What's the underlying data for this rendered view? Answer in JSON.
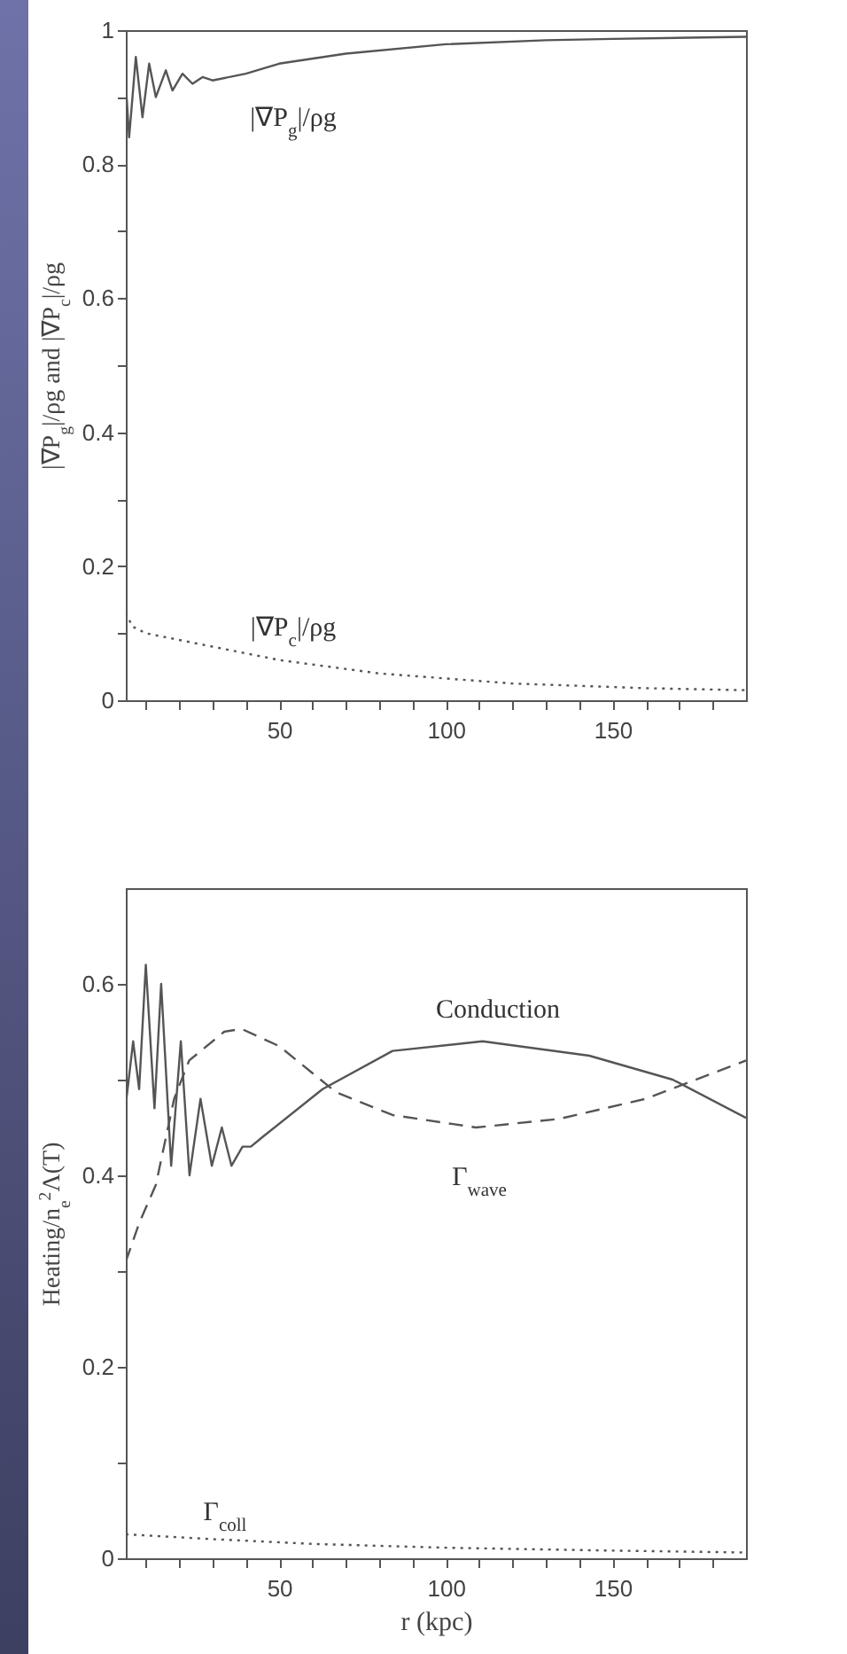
{
  "chart_data": [
    {
      "type": "line",
      "ylabel": "|∇P$_{g}$|/ρg and |∇P$_{c}$|/ρg",
      "xlim": [
        4,
        190
      ],
      "ylim": [
        0,
        1
      ],
      "xticks": [
        {
          "value": 10,
          "label": null
        },
        {
          "value": 20,
          "label": null
        },
        {
          "value": 30,
          "label": null
        },
        {
          "value": 40,
          "label": null
        },
        50,
        {
          "value": 60,
          "label": null
        },
        {
          "value": 70,
          "label": null
        },
        {
          "value": 80,
          "label": null
        },
        {
          "value": 90,
          "label": null
        },
        100,
        {
          "value": 110,
          "label": null
        },
        {
          "value": 120,
          "label": null
        },
        {
          "value": 130,
          "label": null
        },
        {
          "value": 140,
          "label": null
        },
        150,
        {
          "value": 160,
          "label": null
        },
        {
          "value": 170,
          "label": null
        },
        {
          "value": 180,
          "label": null
        }
      ],
      "yticks": [
        0,
        {
          "value": 0.1,
          "label": null
        },
        0.2,
        {
          "value": 0.3,
          "label": null
        },
        0.4,
        {
          "value": 0.5,
          "label": null
        },
        0.6,
        {
          "value": 0.7,
          "label": null
        },
        0.8,
        {
          "value": 0.9,
          "label": null
        },
        1
      ],
      "series": [
        {
          "color": "#555555",
          "line_style": "solid",
          "x": [
            4,
            5,
            7,
            9,
            11,
            13,
            16,
            18,
            21,
            24,
            27,
            30,
            40,
            50,
            70,
            100,
            130,
            150,
            190
          ],
          "values": [
            0.92,
            0.84,
            0.96,
            0.87,
            0.95,
            0.9,
            0.94,
            0.91,
            0.935,
            0.92,
            0.93,
            0.925,
            0.935,
            0.95,
            0.965,
            0.979,
            0.985,
            0.987,
            0.99
          ]
        },
        {
          "color": "#555555",
          "line_style": "dotted",
          "x": [
            4,
            6,
            10,
            20,
            30,
            50,
            80,
            120,
            160,
            190
          ],
          "values": [
            0.13,
            0.11,
            0.1,
            0.09,
            0.08,
            0.06,
            0.04,
            0.025,
            0.018,
            0.015
          ]
        }
      ],
      "annotations": [
        "|∇P$_{g}$|/ρg",
        "|∇P$_{c}$|/ρg"
      ]
    },
    {
      "type": "line",
      "xlabel": "r (kpc)",
      "ylabel": "Heating/n$_{e}$$^{2}$Λ(T)",
      "xlim": [
        4,
        190
      ],
      "ylim": [
        0,
        0.7
      ],
      "xticks": [
        {
          "value": 10,
          "label": null
        },
        {
          "value": 20,
          "label": null
        },
        {
          "value": 30,
          "label": null
        },
        {
          "value": 40,
          "label": null
        },
        50,
        {
          "value": 60,
          "label": null
        },
        {
          "value": 70,
          "label": null
        },
        {
          "value": 80,
          "label": null
        },
        {
          "value": 90,
          "label": null
        },
        100,
        {
          "value": 110,
          "label": null
        },
        {
          "value": 120,
          "label": null
        },
        {
          "value": 130,
          "label": null
        },
        {
          "value": 140,
          "label": null
        },
        150,
        {
          "value": 160,
          "label": null
        },
        {
          "value": 170,
          "label": null
        },
        {
          "value": 180,
          "label": null
        }
      ],
      "yticks": [
        0,
        {
          "value": 0.1,
          "label": null
        },
        0.2,
        {
          "value": 0.3,
          "label": null
        },
        0.4,
        {
          "value": 0.5,
          "label": null
        },
        0.6
      ],
      "series": [
        {
          "color": "#555555",
          "line_style": "solid",
          "x": [
            4.2,
            6.2,
            8,
            10,
            12.6,
            14.6,
            17.6,
            20.5,
            23.1,
            26.4,
            29.8,
            32.8,
            35.7,
            39,
            41.5,
            45,
            63,
            84,
            111,
            143,
            168,
            190
          ],
          "values": [
            0.48,
            0.54,
            0.49,
            0.62,
            0.47,
            0.6,
            0.41,
            0.54,
            0.4,
            0.48,
            0.41,
            0.45,
            0.41,
            0.43,
            0.43,
            0.44,
            0.49,
            0.53,
            0.54,
            0.525,
            0.5,
            0.46
          ]
        },
        {
          "color": "#555555",
          "line_style": "dashed",
          "x": [
            4,
            8,
            13,
            18.5,
            23,
            33.5,
            38.7,
            50,
            67,
            84,
            109,
            134,
            160,
            190
          ],
          "values": [
            0.31,
            0.35,
            0.39,
            0.48,
            0.52,
            0.55,
            0.553,
            0.535,
            0.487,
            0.463,
            0.45,
            0.459,
            0.48,
            0.52
          ]
        },
        {
          "color": "#555555",
          "line_style": "dotted",
          "x": [
            4,
            30,
            60,
            100,
            150,
            190
          ],
          "values": [
            0.025,
            0.02,
            0.015,
            0.011,
            0.008,
            0.006
          ]
        }
      ],
      "annotations": [
        "Conduction",
        "Γ$_{wave}$",
        "Γ$_{coll}$"
      ]
    }
  ]
}
